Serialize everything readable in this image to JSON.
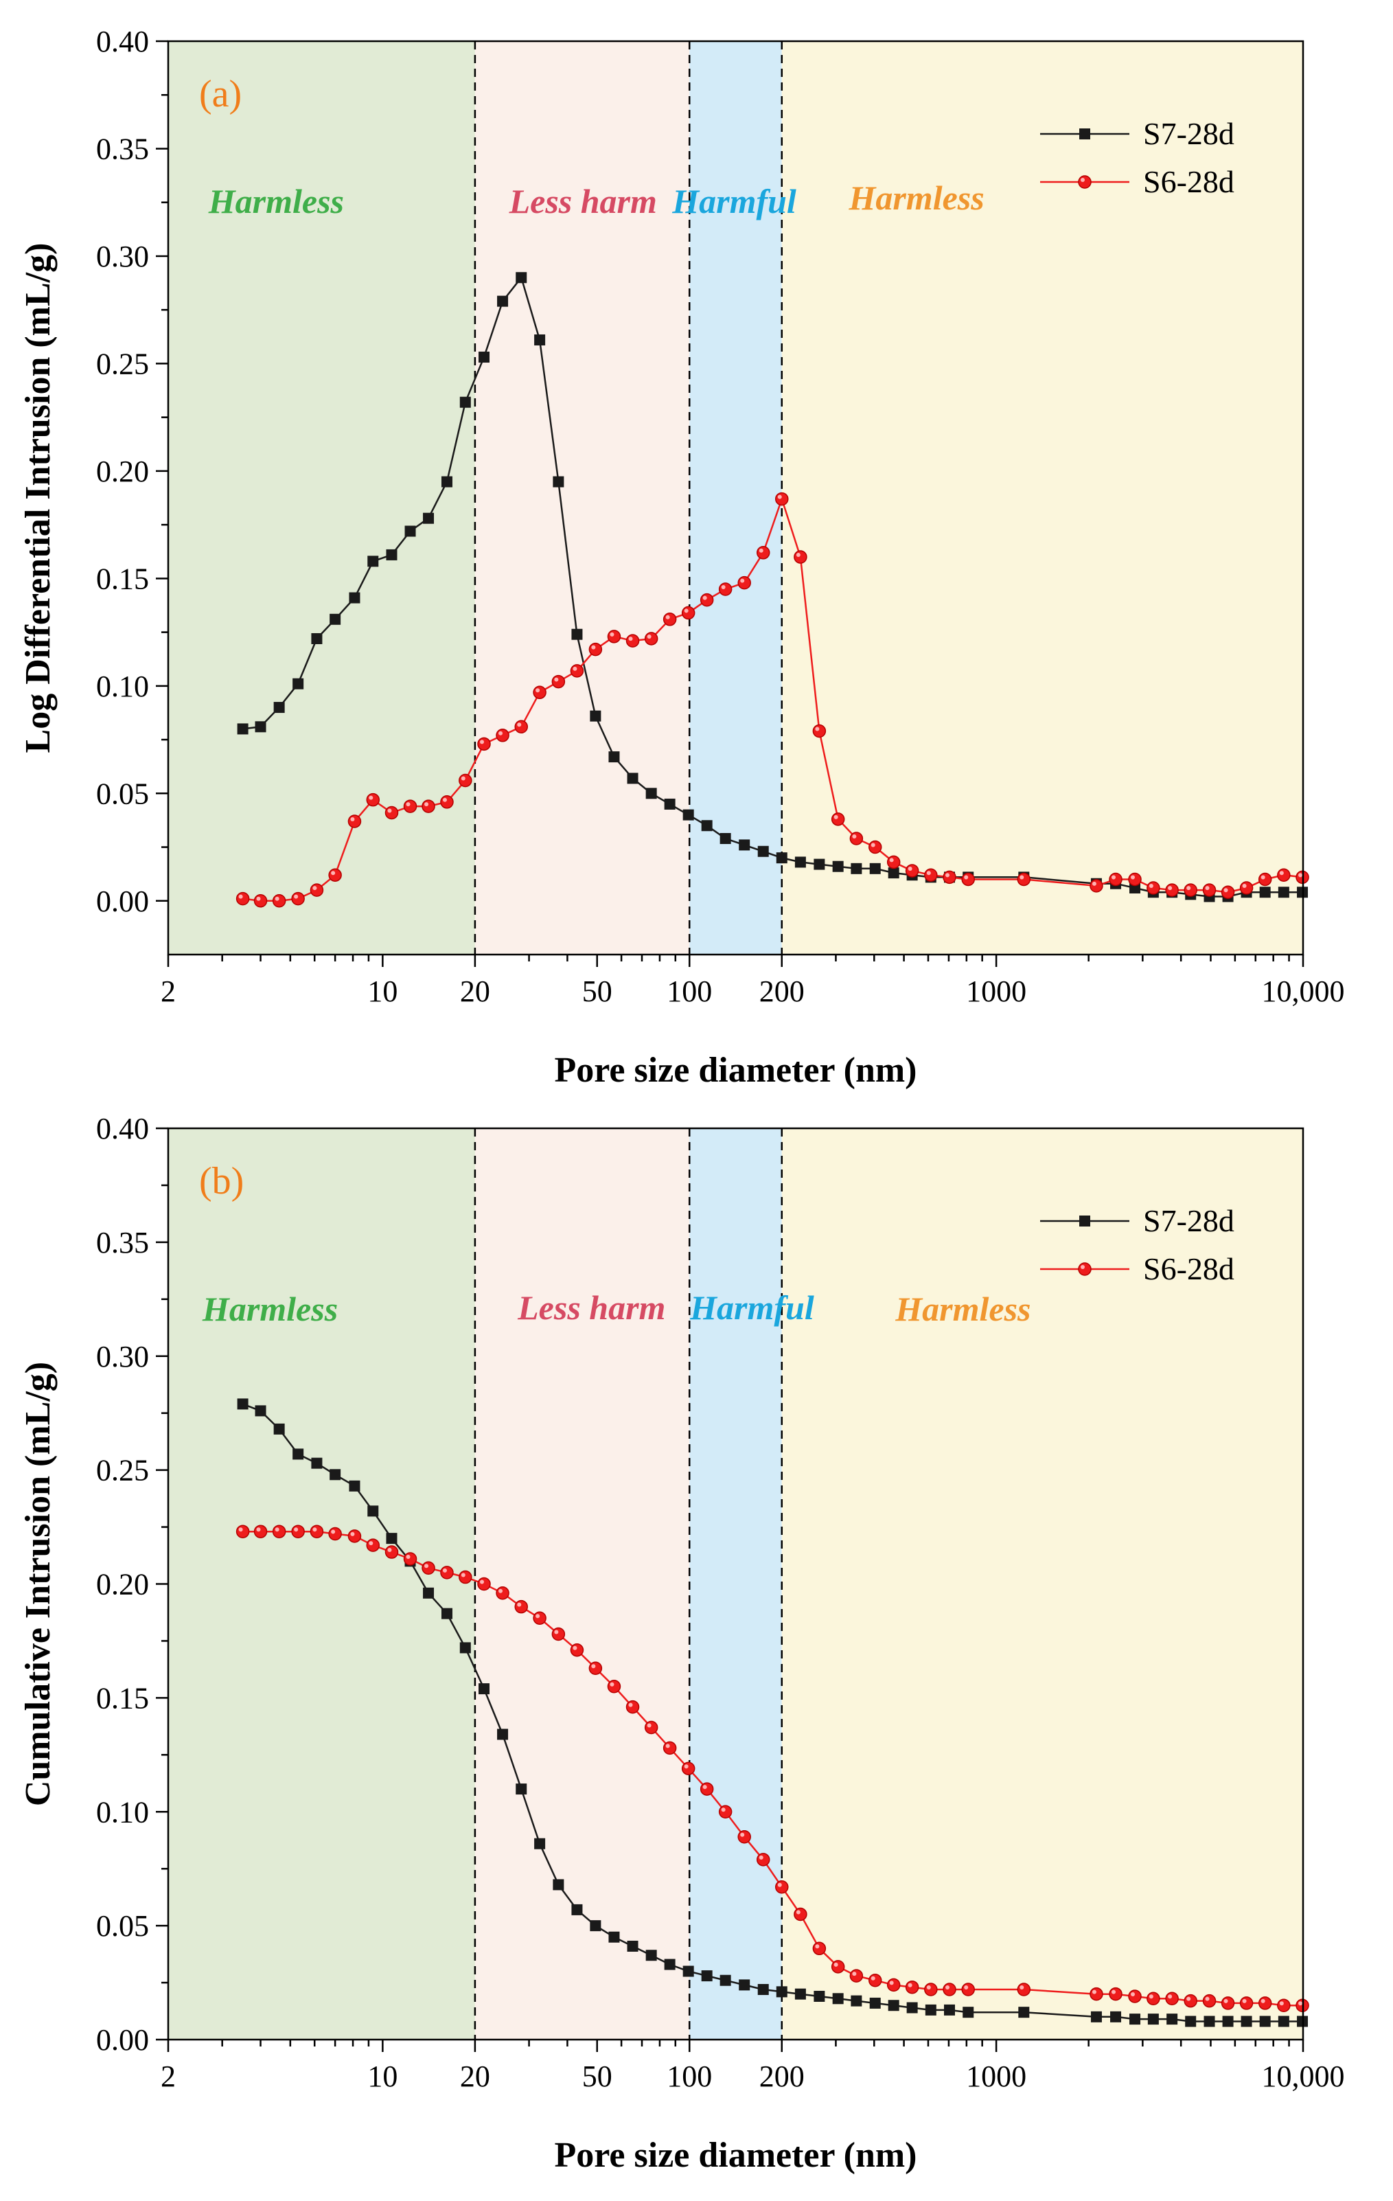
{
  "colors": {
    "harmless_left_bg": "#e1ebd5",
    "less_harm_bg": "#fbf0ea",
    "harmful_bg": "#d3ebf8",
    "harmless_right_bg": "#fbf6dc",
    "harmless_left_text": "#3fae49",
    "less_harm_text": "#d64a63",
    "harmful_text": "#1aa6dd",
    "harmless_right_text": "#f0962f",
    "panel_label": "#f07d1a",
    "s7": "#1a1a1a",
    "s6": "#ee1c1c"
  },
  "chart_data": [
    {
      "type": "line",
      "panel_label": "(a)",
      "xlabel": "Pore size diameter (nm)",
      "ylabel": "Log Differential Intrusion (mL/g)",
      "xscale": "log",
      "xlim": [
        2,
        10000
      ],
      "ylim": [
        -0.025,
        0.4
      ],
      "x_ticks": [
        2,
        10,
        20,
        50,
        100,
        200,
        1000,
        10000
      ],
      "x_tick_labels": [
        "2",
        "10",
        "20",
        "50",
        "100",
        "200",
        "1000",
        "10,000"
      ],
      "y_ticks": [
        0.0,
        0.05,
        0.1,
        0.15,
        0.2,
        0.25,
        0.3,
        0.35,
        0.4
      ],
      "y_tick_labels": [
        "0.00",
        "0.05",
        "0.10",
        "0.15",
        "0.20",
        "0.25",
        "0.30",
        "0.35",
        "0.40"
      ],
      "regions": [
        {
          "label": "Harmless",
          "from": 2,
          "to": 20
        },
        {
          "label": "Less harm",
          "from": 20,
          "to": 100
        },
        {
          "label": "Harmful",
          "from": 100,
          "to": 200
        },
        {
          "label": "Harmless",
          "from": 200,
          "to": 10000
        }
      ],
      "dividers": [
        20,
        100,
        200
      ],
      "legend_position": "top-right",
      "series": [
        {
          "name": "S7-28d",
          "marker": "square",
          "x": [
            3.5,
            4.0,
            4.6,
            5.3,
            6.1,
            7.0,
            8.1,
            9.3,
            10.7,
            12.3,
            14.1,
            16.2,
            18.6,
            21.4,
            24.6,
            28.3,
            32.5,
            37.4,
            43.0,
            49.4,
            56.8,
            65.3,
            75.1,
            86.3,
            99.2,
            114,
            131,
            151,
            174,
            200,
            230,
            265,
            305,
            350,
            403,
            463,
            532,
            612,
            704,
            810,
            1230,
            2120,
            2450,
            2830,
            3250,
            3740,
            4300,
            4950,
            5690,
            6540,
            7520,
            8650,
            9950
          ],
          "y": [
            0.08,
            0.081,
            0.09,
            0.101,
            0.122,
            0.131,
            0.141,
            0.158,
            0.161,
            0.172,
            0.178,
            0.195,
            0.232,
            0.253,
            0.279,
            0.29,
            0.261,
            0.195,
            0.124,
            0.086,
            0.067,
            0.057,
            0.05,
            0.045,
            0.04,
            0.035,
            0.029,
            0.026,
            0.023,
            0.02,
            0.018,
            0.017,
            0.016,
            0.015,
            0.015,
            0.013,
            0.012,
            0.011,
            0.011,
            0.011,
            0.011,
            0.008,
            0.008,
            0.006,
            0.004,
            0.004,
            0.003,
            0.002,
            0.002,
            0.004,
            0.004,
            0.004,
            0.004
          ]
        },
        {
          "name": "S6-28d",
          "marker": "circle",
          "x": [
            3.5,
            4.0,
            4.6,
            5.3,
            6.1,
            7.0,
            8.1,
            9.3,
            10.7,
            12.3,
            14.1,
            16.2,
            18.6,
            21.4,
            24.6,
            28.3,
            32.5,
            37.4,
            43.0,
            49.4,
            56.8,
            65.3,
            75.1,
            86.3,
            99.2,
            114,
            131,
            151,
            174,
            200,
            230,
            265,
            305,
            350,
            403,
            463,
            532,
            612,
            704,
            810,
            1230,
            2120,
            2450,
            2830,
            3250,
            3740,
            4300,
            4950,
            5690,
            6540,
            7520,
            8650,
            9950
          ],
          "y": [
            0.001,
            0.0,
            0.0,
            0.001,
            0.005,
            0.012,
            0.037,
            0.047,
            0.041,
            0.044,
            0.044,
            0.046,
            0.056,
            0.073,
            0.077,
            0.081,
            0.097,
            0.102,
            0.107,
            0.117,
            0.123,
            0.121,
            0.122,
            0.131,
            0.134,
            0.14,
            0.145,
            0.148,
            0.162,
            0.187,
            0.16,
            0.079,
            0.038,
            0.029,
            0.025,
            0.018,
            0.014,
            0.012,
            0.011,
            0.01,
            0.01,
            0.007,
            0.01,
            0.01,
            0.006,
            0.005,
            0.005,
            0.005,
            0.004,
            0.006,
            0.01,
            0.012,
            0.011
          ]
        }
      ]
    },
    {
      "type": "line",
      "panel_label": "(b)",
      "xlabel": "Pore size diameter (nm)",
      "ylabel": "Cumulative Intrusion (mL/g)",
      "xscale": "log",
      "xlim": [
        2,
        10000
      ],
      "ylim": [
        0,
        0.4
      ],
      "x_ticks": [
        2,
        10,
        20,
        50,
        100,
        200,
        1000,
        10000
      ],
      "x_tick_labels": [
        "2",
        "10",
        "20",
        "50",
        "100",
        "200",
        "1000",
        "10,000"
      ],
      "y_ticks": [
        0.0,
        0.05,
        0.1,
        0.15,
        0.2,
        0.25,
        0.3,
        0.35,
        0.4
      ],
      "y_tick_labels": [
        "0.00",
        "0.05",
        "0.10",
        "0.15",
        "0.20",
        "0.25",
        "0.30",
        "0.35",
        "0.40"
      ],
      "regions": [
        {
          "label": "Harmless",
          "from": 2,
          "to": 20
        },
        {
          "label": "Less harm",
          "from": 20,
          "to": 100
        },
        {
          "label": "Harmful",
          "from": 100,
          "to": 200
        },
        {
          "label": "Harmless",
          "from": 200,
          "to": 10000
        }
      ],
      "dividers": [
        20,
        100,
        200
      ],
      "legend_position": "top-right",
      "series": [
        {
          "name": "S7-28d",
          "marker": "square",
          "x": [
            3.5,
            4.0,
            4.6,
            5.3,
            6.1,
            7.0,
            8.1,
            9.3,
            10.7,
            12.3,
            14.1,
            16.2,
            18.6,
            21.4,
            24.6,
            28.3,
            32.5,
            37.4,
            43.0,
            49.4,
            56.8,
            65.3,
            75.1,
            86.3,
            99.2,
            114,
            131,
            151,
            174,
            200,
            230,
            265,
            305,
            350,
            403,
            463,
            532,
            612,
            704,
            810,
            1230,
            2120,
            2450,
            2830,
            3250,
            3740,
            4300,
            4950,
            5690,
            6540,
            7520,
            8650,
            9950
          ],
          "y": [
            0.279,
            0.276,
            0.268,
            0.257,
            0.253,
            0.248,
            0.243,
            0.232,
            0.22,
            0.21,
            0.196,
            0.187,
            0.172,
            0.154,
            0.134,
            0.11,
            0.086,
            0.068,
            0.057,
            0.05,
            0.045,
            0.041,
            0.037,
            0.033,
            0.03,
            0.028,
            0.026,
            0.024,
            0.022,
            0.021,
            0.02,
            0.019,
            0.018,
            0.017,
            0.016,
            0.015,
            0.014,
            0.013,
            0.013,
            0.012,
            0.012,
            0.01,
            0.01,
            0.009,
            0.009,
            0.009,
            0.008,
            0.008,
            0.008,
            0.008,
            0.008,
            0.008,
            0.008
          ]
        },
        {
          "name": "S6-28d",
          "marker": "circle",
          "x": [
            3.5,
            4.0,
            4.6,
            5.3,
            6.1,
            7.0,
            8.1,
            9.3,
            10.7,
            12.3,
            14.1,
            16.2,
            18.6,
            21.4,
            24.6,
            28.3,
            32.5,
            37.4,
            43.0,
            49.4,
            56.8,
            65.3,
            75.1,
            86.3,
            99.2,
            114,
            131,
            151,
            174,
            200,
            230,
            265,
            305,
            350,
            403,
            463,
            532,
            612,
            704,
            810,
            1230,
            2120,
            2450,
            2830,
            3250,
            3740,
            4300,
            4950,
            5690,
            6540,
            7520,
            8650,
            9950
          ],
          "y": [
            0.223,
            0.223,
            0.223,
            0.223,
            0.223,
            0.222,
            0.221,
            0.217,
            0.214,
            0.211,
            0.207,
            0.205,
            0.203,
            0.2,
            0.196,
            0.19,
            0.185,
            0.178,
            0.171,
            0.163,
            0.155,
            0.146,
            0.137,
            0.128,
            0.119,
            0.11,
            0.1,
            0.089,
            0.079,
            0.067,
            0.055,
            0.04,
            0.032,
            0.028,
            0.026,
            0.024,
            0.023,
            0.022,
            0.022,
            0.022,
            0.022,
            0.02,
            0.02,
            0.019,
            0.018,
            0.018,
            0.017,
            0.017,
            0.016,
            0.016,
            0.016,
            0.015,
            0.015
          ]
        }
      ]
    }
  ]
}
